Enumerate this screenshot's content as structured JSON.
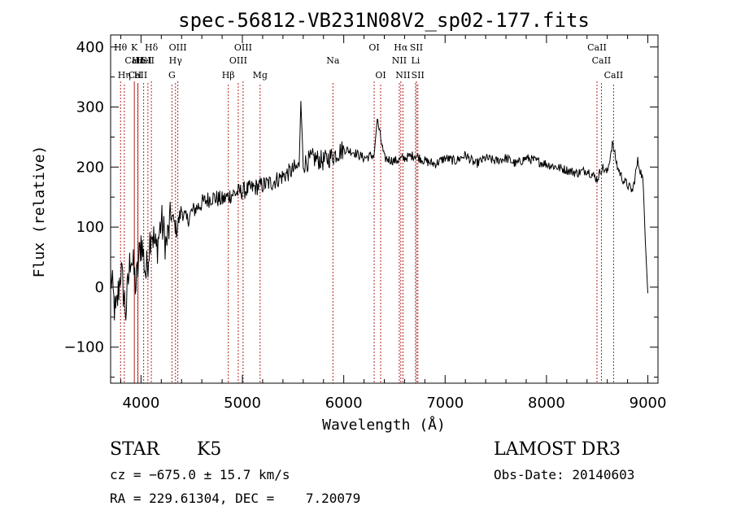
{
  "chart_data": {
    "type": "line",
    "title": "spec-56812-VB231N08V2_sp02-177.fits",
    "xlabel": "Wavelength (Å)",
    "ylabel": "Flux (relative)",
    "xlim": [
      3700,
      9100
    ],
    "ylim": [
      -160,
      420
    ],
    "xticks": [
      4000,
      5000,
      6000,
      7000,
      8000,
      9000
    ],
    "xtick_labels": [
      "4000",
      "5000",
      "6000",
      "7000",
      "8000",
      "9000"
    ],
    "yticks": [
      -100,
      0,
      100,
      200,
      300,
      400
    ],
    "ytick_labels": [
      "−100",
      "0",
      "100",
      "200",
      "300",
      "400"
    ],
    "grid": false,
    "series": [
      {
        "name": "flux",
        "x": [
          3700,
          3750,
          3800,
          3850,
          3900,
          3950,
          4000,
          4050,
          4100,
          4150,
          4200,
          4250,
          4300,
          4350,
          4400,
          4450,
          4500,
          4600,
          4700,
          4800,
          4900,
          5000,
          5100,
          5200,
          5300,
          5400,
          5500,
          5560,
          5577,
          5600,
          5700,
          5800,
          5900,
          6000,
          6100,
          6200,
          6300,
          6330,
          6400,
          6500,
          6600,
          6700,
          6800,
          6900,
          7000,
          7100,
          7200,
          7300,
          7400,
          7500,
          7600,
          7700,
          7800,
          7900,
          8000,
          8100,
          8200,
          8300,
          8400,
          8500,
          8550,
          8600,
          8650,
          8700,
          8750,
          8800,
          8850,
          8900,
          8950,
          9000
        ],
        "values": [
          20,
          -50,
          30,
          -40,
          60,
          0,
          80,
          20,
          100,
          60,
          110,
          70,
          120,
          95,
          130,
          110,
          125,
          140,
          150,
          145,
          155,
          160,
          165,
          170,
          175,
          185,
          195,
          200,
          310,
          205,
          215,
          210,
          220,
          230,
          225,
          215,
          220,
          280,
          215,
          210,
          215,
          220,
          210,
          205,
          215,
          210,
          220,
          205,
          215,
          210,
          215,
          205,
          215,
          210,
          205,
          200,
          195,
          190,
          195,
          180,
          200,
          190,
          240,
          200,
          180,
          170,
          160,
          210,
          180,
          -10
        ]
      }
    ],
    "lines": [
      {
        "label": "CaII",
        "x": 3934,
        "row": 1
      },
      {
        "label": "CaII",
        "x": 3968,
        "row": 2
      },
      {
        "label": "Hθ",
        "x": 3798,
        "row": 0
      },
      {
        "label": "Hε",
        "x": 3970,
        "row": 1
      },
      {
        "label": "Hη",
        "x": 3835,
        "row": 2
      },
      {
        "label": "K",
        "x": 3934,
        "row": 0
      },
      {
        "label": "H",
        "x": 3968,
        "row": 2
      },
      {
        "label": "HeI",
        "x": 4026,
        "row": 1
      },
      {
        "label": "SII",
        "x": 4068,
        "row": 1
      },
      {
        "label": "Hδ",
        "x": 4102,
        "row": 0
      },
      {
        "label": "OIII",
        "x": 4363,
        "row": 0
      },
      {
        "label": "Hγ",
        "x": 4340,
        "row": 1
      },
      {
        "label": "G",
        "x": 4305,
        "row": 2
      },
      {
        "label": "Hβ",
        "x": 4861,
        "row": 2
      },
      {
        "label": "OIII",
        "x": 5007,
        "row": 0
      },
      {
        "label": "OIII",
        "x": 4959,
        "row": 1
      },
      {
        "label": "Mg",
        "x": 5175,
        "row": 2
      },
      {
        "label": "Na",
        "x": 5893,
        "row": 1
      },
      {
        "label": "OI",
        "x": 6300,
        "row": 0
      },
      {
        "label": "OI",
        "x": 6364,
        "row": 2
      },
      {
        "label": "Hα",
        "x": 6563,
        "row": 0
      },
      {
        "label": "NII",
        "x": 6548,
        "row": 1
      },
      {
        "label": "NII",
        "x": 6584,
        "row": 2
      },
      {
        "label": "SII",
        "x": 6717,
        "row": 0
      },
      {
        "label": "Li",
        "x": 6708,
        "row": 1
      },
      {
        "label": "SII",
        "x": 6731,
        "row": 2
      },
      {
        "label": "CaII",
        "x": 8498,
        "row": 0
      },
      {
        "label": "CaII",
        "x": 8542,
        "row": 1
      },
      {
        "label": "CaII",
        "x": 8662,
        "row": 2
      }
    ]
  },
  "footer": {
    "class_label": "STAR",
    "subclass": "K5",
    "survey": "LAMOST DR3",
    "cz_line": "cz = −675.0 ± 15.7 km/s",
    "obs_date": "Obs-Date: 20140603",
    "coords": "RA = 229.61304, DEC =    7.20079"
  },
  "colors": {
    "line_marker": "#b22222",
    "spectrum": "#000000"
  }
}
